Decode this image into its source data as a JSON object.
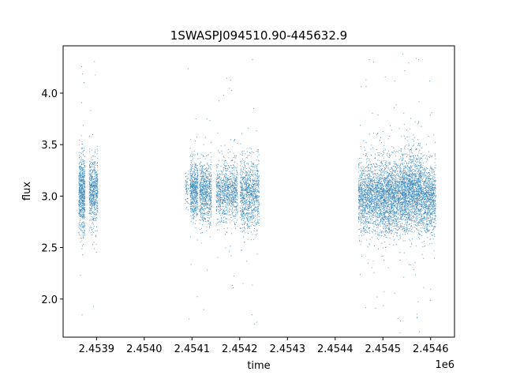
{
  "chart_data": {
    "type": "scatter",
    "title": "1SWASPJ094510.90-445632.9",
    "xlabel": "time",
    "ylabel": "flux",
    "x_offset_label": "1e6",
    "xlim": [
      2453830,
      2454650
    ],
    "ylim": [
      1.63,
      4.46
    ],
    "x_ticks": [
      2453900,
      2454000,
      2454100,
      2454200,
      2454300,
      2454400,
      2454500,
      2454600
    ],
    "x_tick_labels": [
      "2.4539",
      "2.4540",
      "2.4541",
      "2.4542",
      "2.4543",
      "2.4544",
      "2.4545",
      "2.4546"
    ],
    "y_ticks": [
      2.0,
      2.5,
      3.0,
      3.5,
      4.0
    ],
    "y_tick_labels": [
      "2.0",
      "2.5",
      "3.0",
      "3.5",
      "4.0"
    ],
    "grid": false,
    "legend": "none",
    "marker_color": "#1f77b4",
    "series": [
      {
        "clusters": [
          {
            "x_range": [
              2453862,
              2453875
            ],
            "center": 3.02,
            "spread": 0.32,
            "count": 700
          },
          {
            "x_range": [
              2453884,
              2453902
            ],
            "center": 3.05,
            "spread": 0.3,
            "count": 650
          },
          {
            "x_range": [
              2454085,
              2454092
            ],
            "center": 3.05,
            "spread": 0.18,
            "count": 60
          },
          {
            "x_range": [
              2454095,
              2454112
            ],
            "center": 3.06,
            "spread": 0.25,
            "count": 600
          },
          {
            "x_range": [
              2454115,
              2454140
            ],
            "center": 3.05,
            "spread": 0.26,
            "count": 700
          },
          {
            "x_range": [
              2454150,
              2454195
            ],
            "center": 3.04,
            "spread": 0.25,
            "count": 1000
          },
          {
            "x_range": [
              2454200,
              2454240
            ],
            "center": 3.02,
            "spread": 0.3,
            "count": 1000
          },
          {
            "x_range": [
              2454448,
              2454495
            ],
            "center": 3.0,
            "spread": 0.3,
            "count": 1400
          },
          {
            "x_range": [
              2454495,
              2454540
            ],
            "center": 3.0,
            "spread": 0.32,
            "count": 1600
          },
          {
            "x_range": [
              2454540,
              2454580
            ],
            "center": 3.05,
            "spread": 0.33,
            "count": 1600
          },
          {
            "x_range": [
              2454580,
              2454610
            ],
            "center": 2.98,
            "spread": 0.3,
            "count": 900
          }
        ],
        "outliers": [
          {
            "x": 2453868,
            "y": 4.26
          },
          {
            "x": 2453869,
            "y": 1.85
          },
          {
            "x": 2453870,
            "y": 4.19
          },
          {
            "x": 2453895,
            "y": 4.31
          },
          {
            "x": 2453893,
            "y": 1.93
          },
          {
            "x": 2453897,
            "y": 4.18
          },
          {
            "x": 2454091,
            "y": 4.24
          },
          {
            "x": 2454093,
            "y": 1.81
          },
          {
            "x": 2454124,
            "y": 1.9
          },
          {
            "x": 2454178,
            "y": 4.05
          },
          {
            "x": 2454182,
            "y": 4.03
          },
          {
            "x": 2454226,
            "y": 4.33
          },
          {
            "x": 2454230,
            "y": 1.76
          },
          {
            "x": 2454225,
            "y": 1.85
          },
          {
            "x": 2454464,
            "y": 4.07
          },
          {
            "x": 2454463,
            "y": 1.92
          },
          {
            "x": 2454504,
            "y": 4.16
          },
          {
            "x": 2454500,
            "y": 1.94
          },
          {
            "x": 2454524,
            "y": 4.12
          },
          {
            "x": 2454536,
            "y": 1.79
          },
          {
            "x": 2454541,
            "y": 4.38
          },
          {
            "x": 2454569,
            "y": 4.34
          },
          {
            "x": 2454574,
            "y": 4.33
          },
          {
            "x": 2454571,
            "y": 1.82
          },
          {
            "x": 2454597,
            "y": 4.12
          },
          {
            "x": 2454599,
            "y": 1.99
          }
        ]
      }
    ]
  }
}
